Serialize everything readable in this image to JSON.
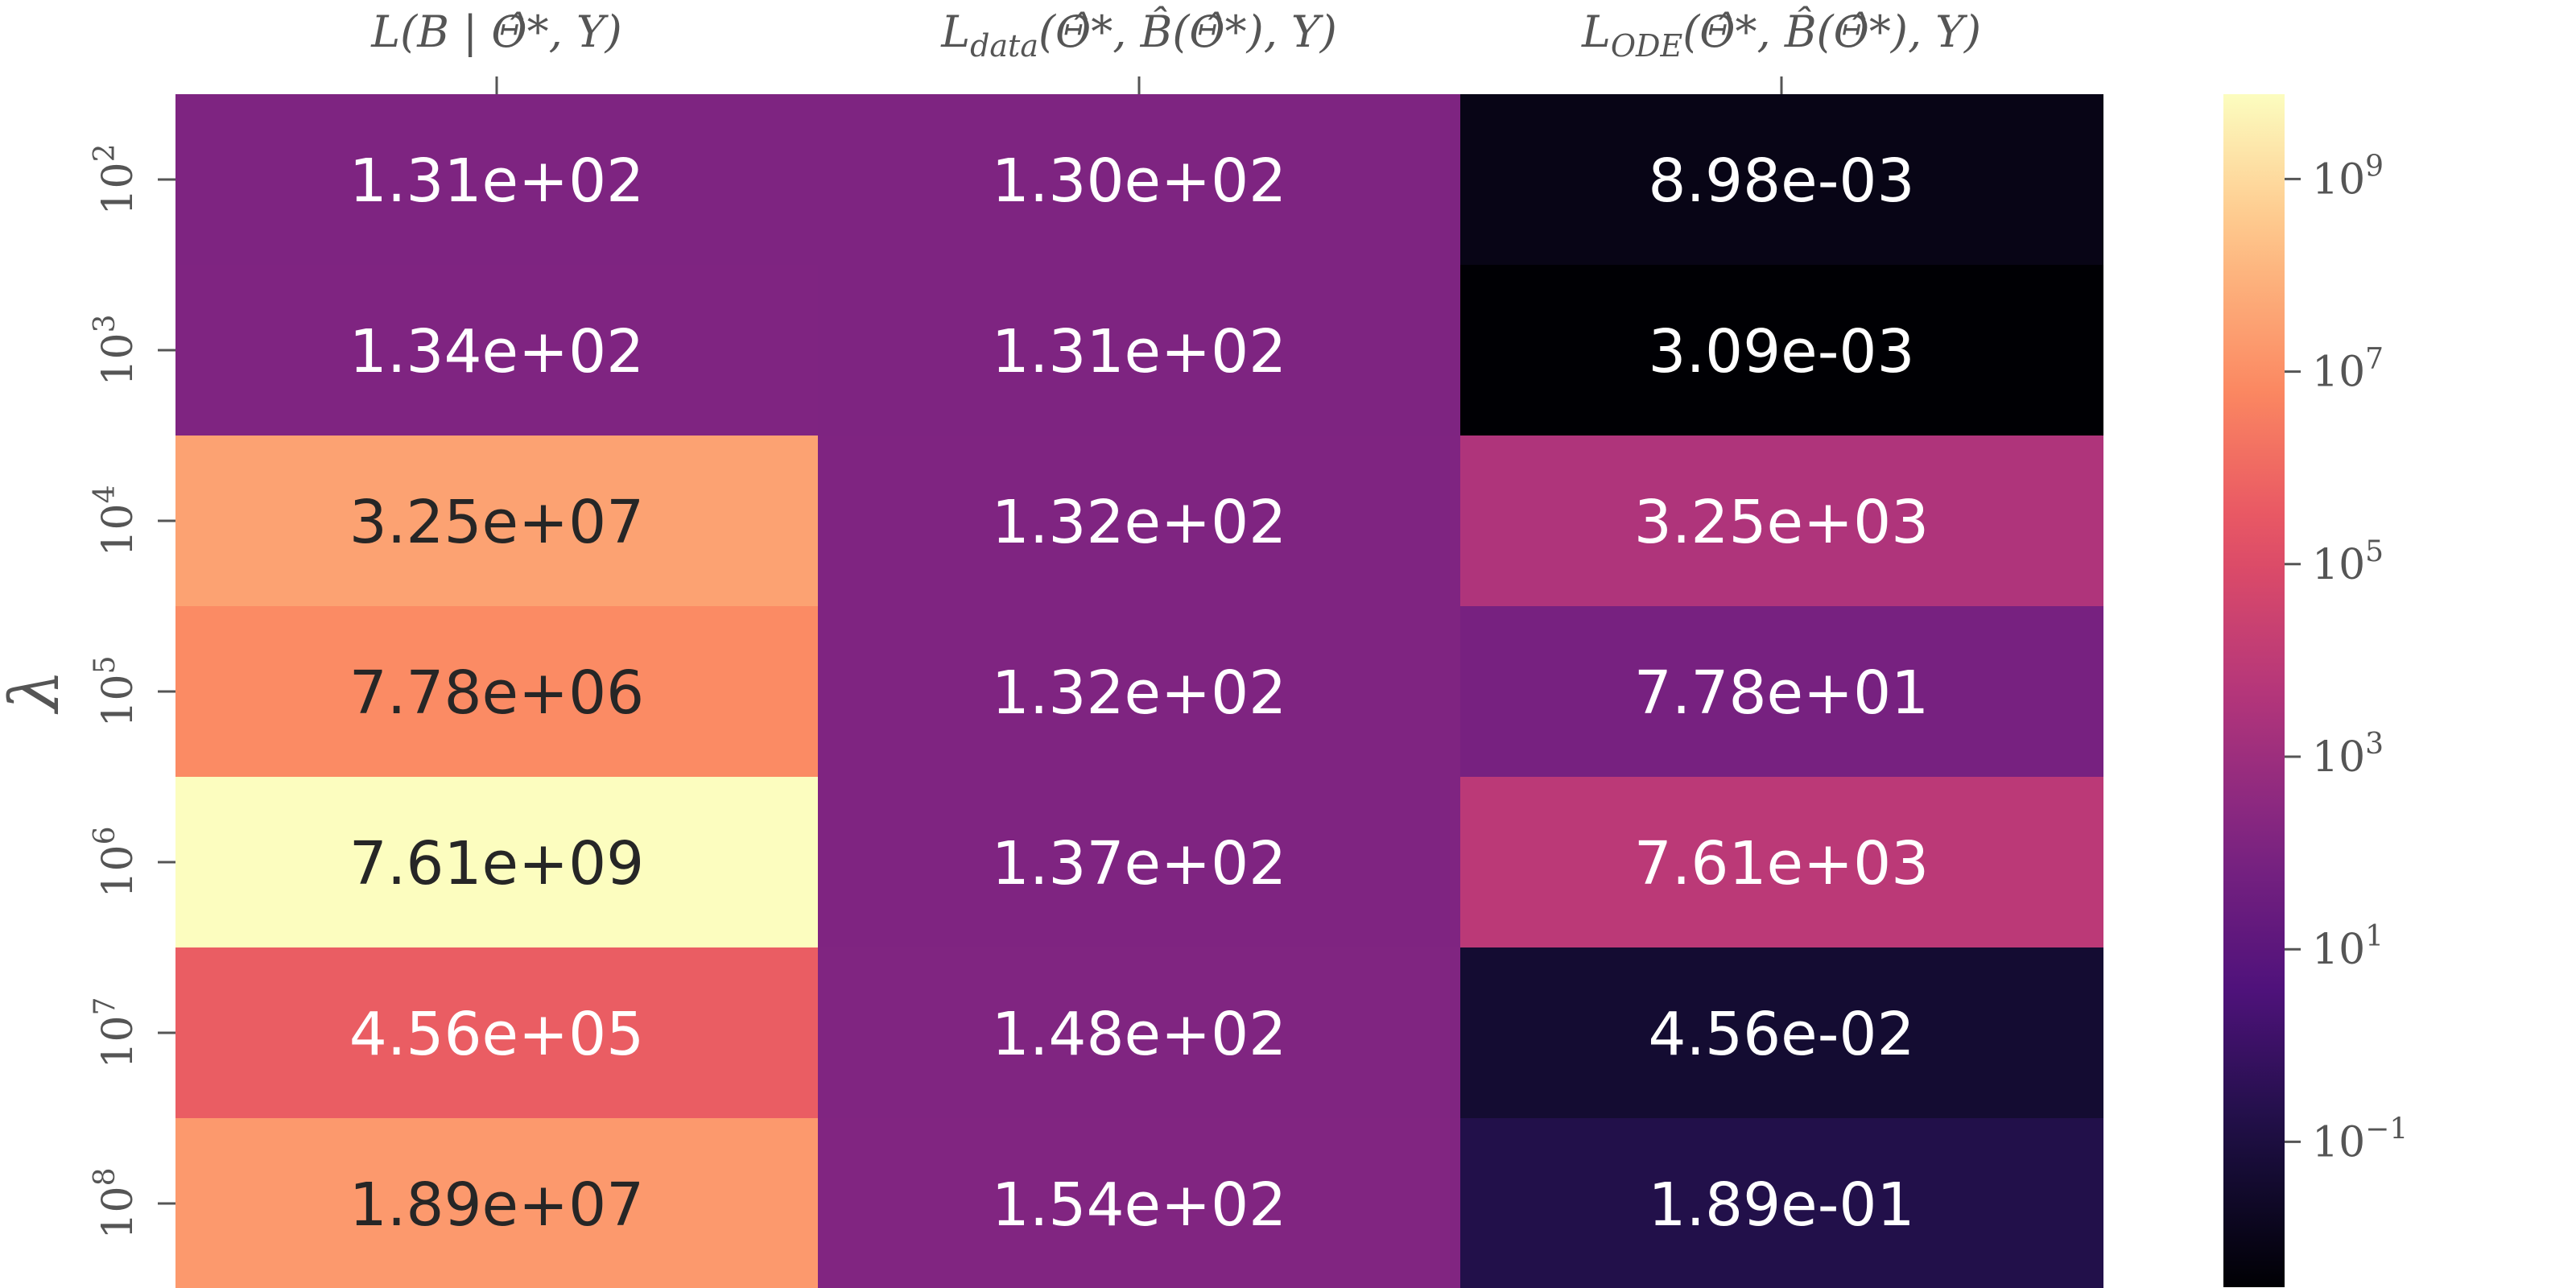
{
  "chart_data": {
    "type": "heatmap",
    "title": "",
    "colormap": "magma",
    "scale": "log",
    "ylabel": "λ",
    "columns": [
      {
        "base": "L",
        "sub": "",
        "args": "(B | Θ̂*, Y)"
      },
      {
        "base": "L",
        "sub": "data",
        "args": "(Θ̂*, B̂(Θ̂*), Y)"
      },
      {
        "base": "L",
        "sub": "ODE",
        "args": "(Θ̂*, B̂(Θ̂*), Y)"
      }
    ],
    "rows": [
      {
        "base": "10",
        "exp": "2"
      },
      {
        "base": "10",
        "exp": "3"
      },
      {
        "base": "10",
        "exp": "4"
      },
      {
        "base": "10",
        "exp": "5"
      },
      {
        "base": "10",
        "exp": "6"
      },
      {
        "base": "10",
        "exp": "7"
      },
      {
        "base": "10",
        "exp": "8"
      }
    ],
    "values": [
      [
        131,
        130,
        0.00898
      ],
      [
        134,
        131,
        0.00309
      ],
      [
        32500000,
        132,
        3250
      ],
      [
        7780000,
        132,
        77.8
      ],
      [
        7610000000,
        137,
        7610
      ],
      [
        456000,
        148,
        0.0456
      ],
      [
        18900000,
        154,
        0.189
      ]
    ],
    "labels": [
      [
        "1.31e+02",
        "1.30e+02",
        "8.98e-03"
      ],
      [
        "1.34e+02",
        "1.31e+02",
        "3.09e-03"
      ],
      [
        "3.25e+07",
        "1.32e+02",
        "3.25e+03"
      ],
      [
        "7.78e+06",
        "1.32e+02",
        "7.78e+01"
      ],
      [
        "7.61e+09",
        "1.37e+02",
        "7.61e+03"
      ],
      [
        "4.56e+05",
        "1.48e+02",
        "4.56e-02"
      ],
      [
        "1.89e+07",
        "1.54e+02",
        "1.89e-01"
      ]
    ],
    "colorbar": {
      "range": [
        0.00309,
        7610000000
      ],
      "ticks": [
        {
          "value": 0.1,
          "base": "10",
          "exp": "−1"
        },
        {
          "value": 10,
          "base": "10",
          "exp": "1"
        },
        {
          "value": 1000,
          "base": "10",
          "exp": "3"
        },
        {
          "value": 100000,
          "base": "10",
          "exp": "5"
        },
        {
          "value": 10000000,
          "base": "10",
          "exp": "7"
        },
        {
          "value": 1000000000,
          "base": "10",
          "exp": "9"
        }
      ]
    }
  }
}
